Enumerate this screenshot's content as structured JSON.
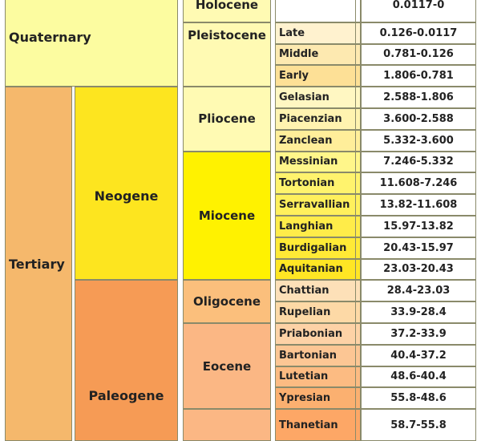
{
  "colors": {
    "quaternary": "#fcfca0",
    "tertiary": "#f5b86c",
    "neogene": "#fde51f",
    "paleogene": "#f69b55",
    "pliocene": "#fffab3",
    "miocene": "#fff200",
    "oligocene": "#fbbf7c",
    "eocene": "#fbb784"
  },
  "periods": {
    "quaternary": "Quaternary",
    "tertiary": "Tertiary"
  },
  "subperiods": {
    "neogene": "Neogene",
    "paleogene": "Paleogene"
  },
  "epochs": {
    "holocene": "Holocene",
    "pleistocene": "Pleistocene",
    "pliocene": "Pliocene",
    "miocene": "Miocene",
    "oligocene": "Oligocene",
    "eocene": "Eocene"
  },
  "stages": [
    {
      "name": "",
      "age": "0.0117-0"
    },
    {
      "name": "Late",
      "age": "0.126-0.0117"
    },
    {
      "name": "Middle",
      "age": "0.781-0.126"
    },
    {
      "name": "Early",
      "age": "1.806-0.781"
    },
    {
      "name": "Gelasian",
      "age": "2.588-1.806"
    },
    {
      "name": "Piacenzian",
      "age": "3.600-2.588"
    },
    {
      "name": "Zanclean",
      "age": "5.332-3.600"
    },
    {
      "name": "Messinian",
      "age": "7.246-5.332"
    },
    {
      "name": "Tortonian",
      "age": "11.608-7.246"
    },
    {
      "name": "Serravallian",
      "age": "13.82-11.608"
    },
    {
      "name": "Langhian",
      "age": "15.97-13.82"
    },
    {
      "name": "Burdigalian",
      "age": "20.43-15.97"
    },
    {
      "name": "Aquitanian",
      "age": "23.03-20.43"
    },
    {
      "name": "Chattian",
      "age": "28.4-23.03"
    },
    {
      "name": "Rupelian",
      "age": "33.9-28.4"
    },
    {
      "name": "Priabonian",
      "age": "37.2-33.9"
    },
    {
      "name": "Bartonian",
      "age": "40.4-37.2"
    },
    {
      "name": "Lutetian",
      "age": "48.6-40.4"
    },
    {
      "name": "Ypresian",
      "age": "55.8-48.6"
    },
    {
      "name": "Thanetian",
      "age": "58.7-55.8"
    }
  ],
  "stage_colors": [
    "#ffffff",
    "#fff2cf",
    "#fde9b0",
    "#fde096",
    "#fff7c2",
    "#fff3b0",
    "#ffee9a",
    "#fff68a",
    "#fff36d",
    "#fff05c",
    "#ffec49",
    "#ffea36",
    "#ffe624",
    "#fde0b8",
    "#fdd9a6",
    "#fdd2a6",
    "#fcc694",
    "#fcbb82",
    "#fbb070",
    "#fda766"
  ]
}
